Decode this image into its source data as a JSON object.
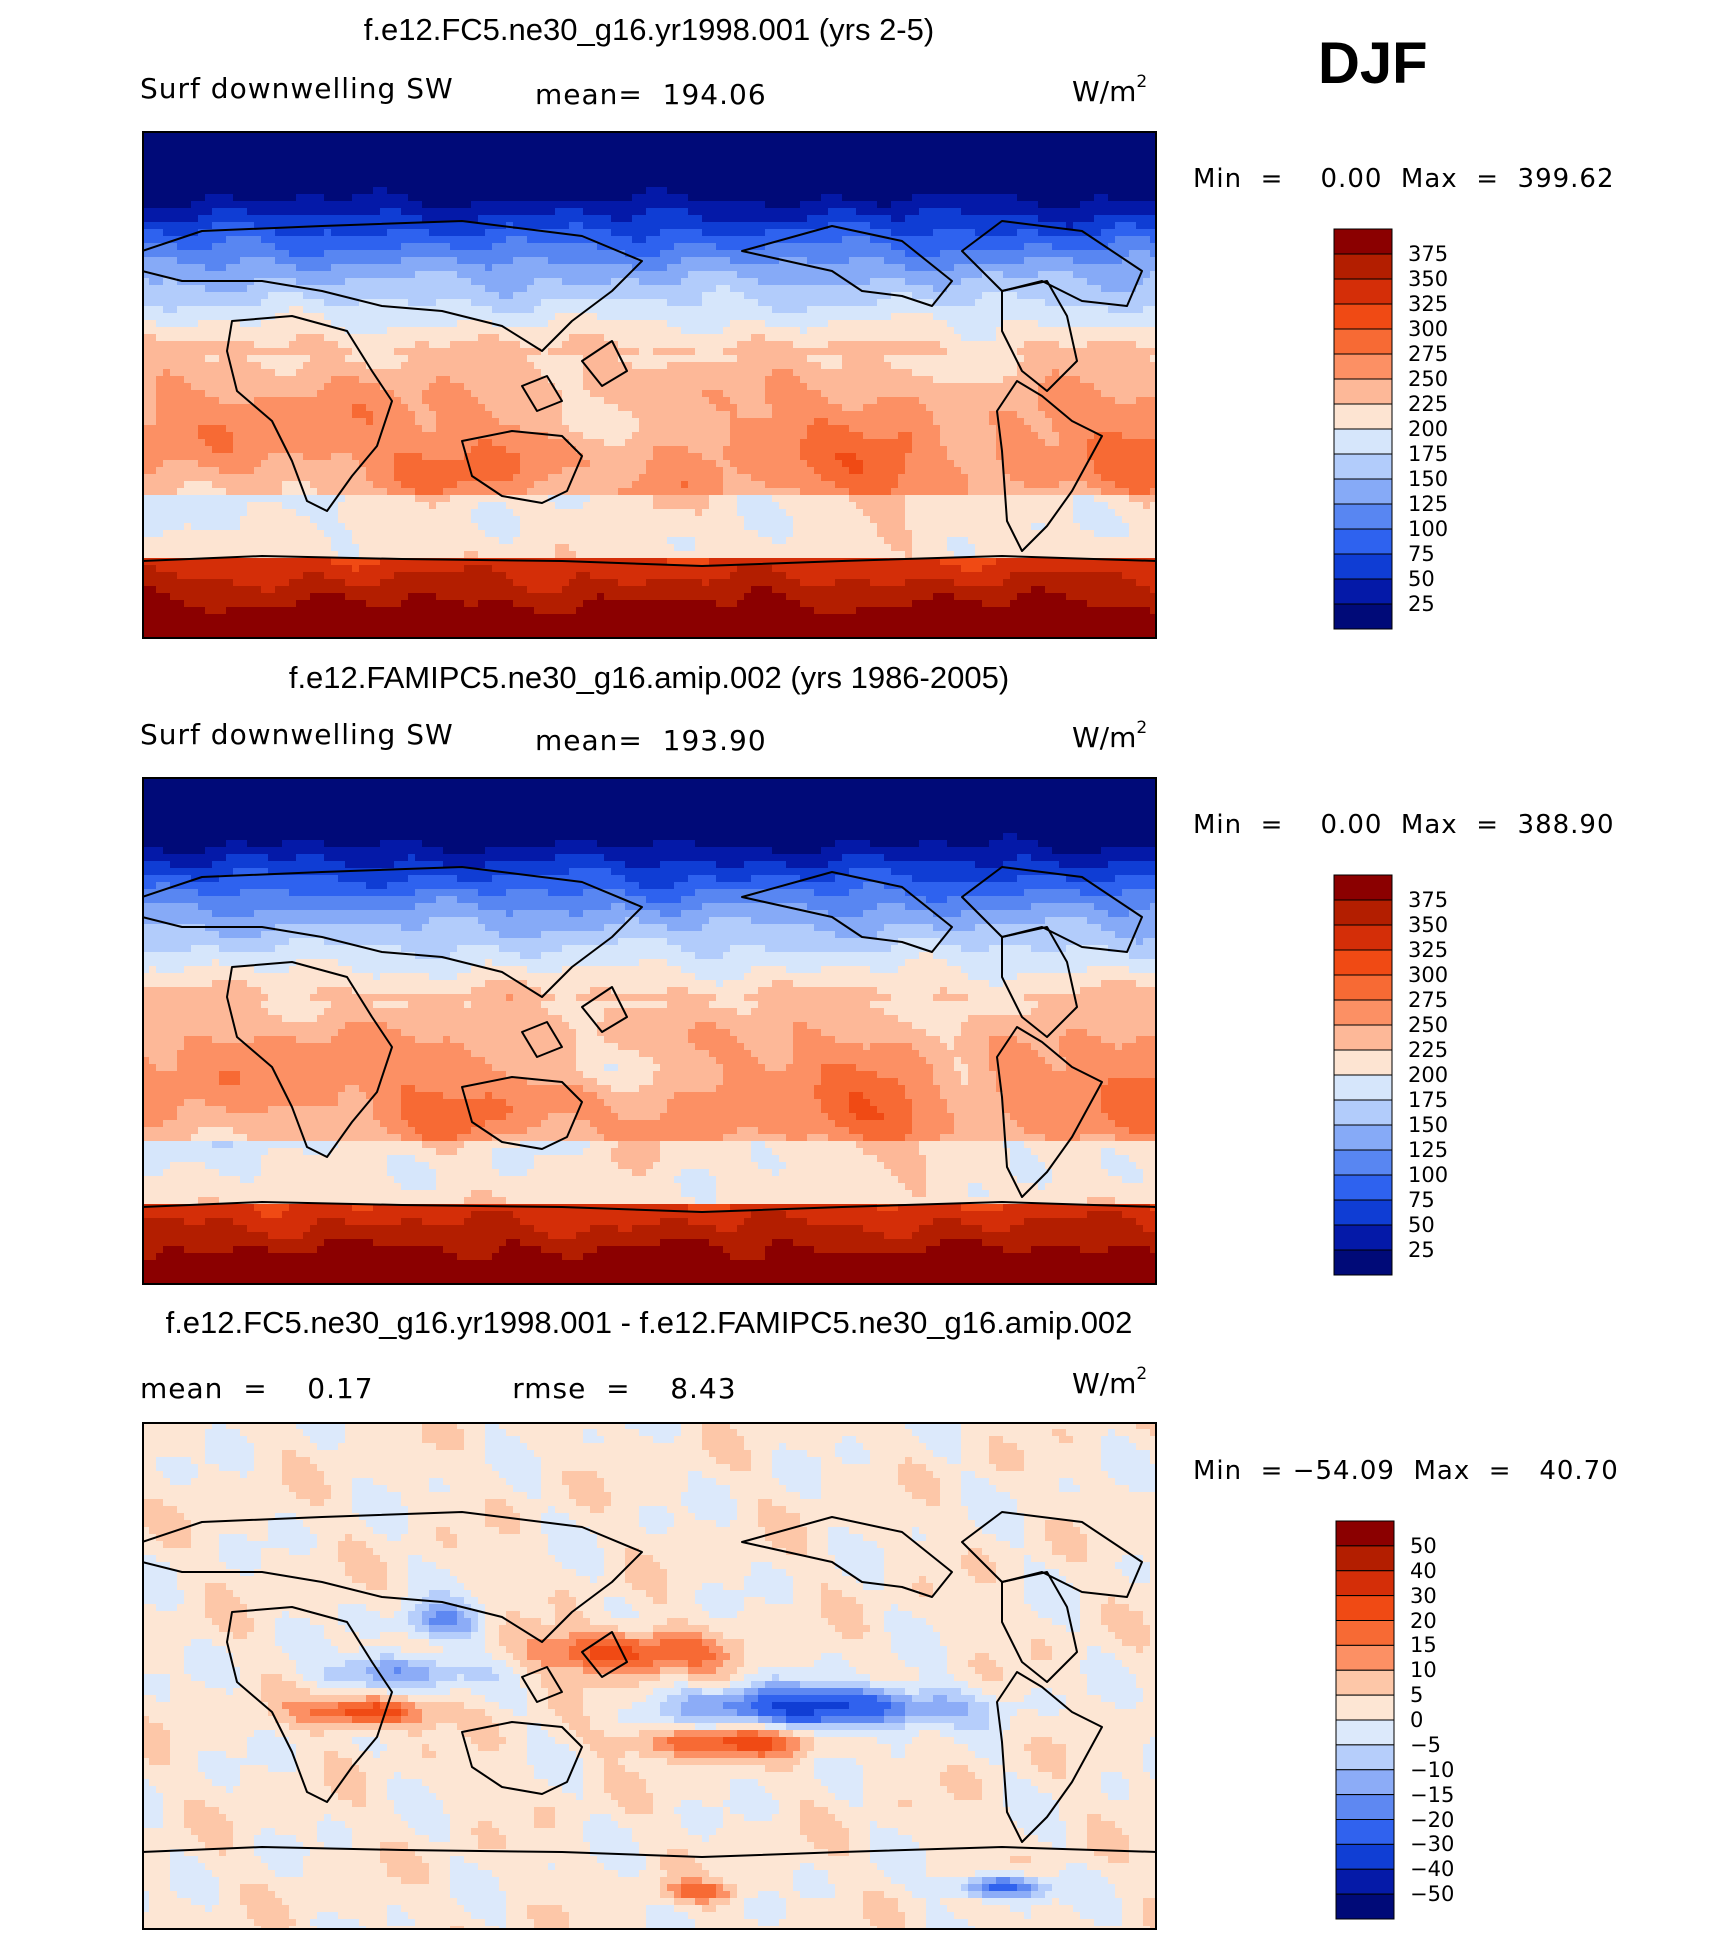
{
  "season": "DJF",
  "panels": [
    {
      "id": "model",
      "title": "f.e12.FC5.ne30_g16.yr1998.001 (yrs 2-5)",
      "variable": "Surf downwelling SW",
      "stat_text": "mean=  194.06",
      "units": "W/m",
      "units_sup": "2",
      "minmax_text": "Min  =    0.00  Max  =  399.62",
      "colorbar": {
        "levels": [
          "375",
          "350",
          "325",
          "300",
          "275",
          "250",
          "225",
          "200",
          "175",
          "150",
          "125",
          "100",
          "75",
          "50",
          "25"
        ],
        "colors": [
          "#8b0000",
          "#b31e00",
          "#d42e08",
          "#f04a14",
          "#f76a34",
          "#fc9064",
          "#fdb898",
          "#fde4d2",
          "#d6e6fb",
          "#b2ccfb",
          "#86aaf7",
          "#5886f2",
          "#2e62ef",
          "#0f3dd4",
          "#0419a8",
          "#000a78"
        ]
      },
      "chart_data": {
        "type": "heatmap",
        "title": "f.e12.FC5.ne30_g16.yr1998.001 (yrs 2-5)",
        "variable": "Surf downwelling SW",
        "mean": 194.06,
        "units": "W/m2",
        "min": 0.0,
        "max": 399.62,
        "contour_levels": [
          25,
          50,
          75,
          100,
          125,
          150,
          175,
          200,
          225,
          250,
          275,
          300,
          325,
          350,
          375
        ]
      }
    },
    {
      "id": "obs",
      "title": "f.e12.FAMIPC5.ne30_g16.amip.002 (yrs 1986-2005)",
      "variable": "Surf downwelling SW",
      "stat_text": "mean=  193.90",
      "units": "W/m",
      "units_sup": "2",
      "minmax_text": "Min  =    0.00  Max  =  388.90",
      "colorbar": {
        "levels": [
          "375",
          "350",
          "325",
          "300",
          "275",
          "250",
          "225",
          "200",
          "175",
          "150",
          "125",
          "100",
          "75",
          "50",
          "25"
        ],
        "colors": [
          "#8b0000",
          "#b31e00",
          "#d42e08",
          "#f04a14",
          "#f76a34",
          "#fc9064",
          "#fdb898",
          "#fde4d2",
          "#d6e6fb",
          "#b2ccfb",
          "#86aaf7",
          "#5886f2",
          "#2e62ef",
          "#0f3dd4",
          "#0419a8",
          "#000a78"
        ]
      },
      "chart_data": {
        "type": "heatmap",
        "title": "f.e12.FAMIPC5.ne30_g16.amip.002 (yrs 1986-2005)",
        "variable": "Surf downwelling SW",
        "mean": 193.9,
        "units": "W/m2",
        "min": 0.0,
        "max": 388.9,
        "contour_levels": [
          25,
          50,
          75,
          100,
          125,
          150,
          175,
          200,
          225,
          250,
          275,
          300,
          325,
          350,
          375
        ]
      }
    },
    {
      "id": "diff",
      "title": "f.e12.FC5.ne30_g16.yr1998.001 - f.e12.FAMIPC5.ne30_g16.amip.002",
      "stat_text": "mean  =    0.17              rmse  =    8.43",
      "units": "W/m",
      "units_sup": "2",
      "minmax_text": "Min  = −54.09  Max  =   40.70",
      "colorbar": {
        "levels": [
          "50",
          "40",
          "30",
          "20",
          "15",
          "10",
          "5",
          "0",
          "−5",
          "−10",
          "−15",
          "−20",
          "−30",
          "−40",
          "−50"
        ],
        "colors": [
          "#8b0000",
          "#b31e00",
          "#d42e08",
          "#f04a14",
          "#f76a34",
          "#fc9064",
          "#fdc7a8",
          "#fde6d4",
          "#dce9fb",
          "#b6cefb",
          "#8cacf7",
          "#5e88f2",
          "#3062ee",
          "#103ed4",
          "#051aa8",
          "#000a78"
        ]
      },
      "chart_data": {
        "type": "heatmap",
        "title": "f.e12.FC5.ne30_g16.yr1998.001 - f.e12.FAMIPC5.ne30_g16.amip.002",
        "mean": 0.17,
        "rmse": 8.43,
        "units": "W/m2",
        "min": -54.09,
        "max": 40.7,
        "contour_levels": [
          -50,
          -40,
          -30,
          -20,
          -15,
          -10,
          -5,
          0,
          5,
          10,
          15,
          20,
          30,
          40,
          50
        ]
      }
    }
  ]
}
